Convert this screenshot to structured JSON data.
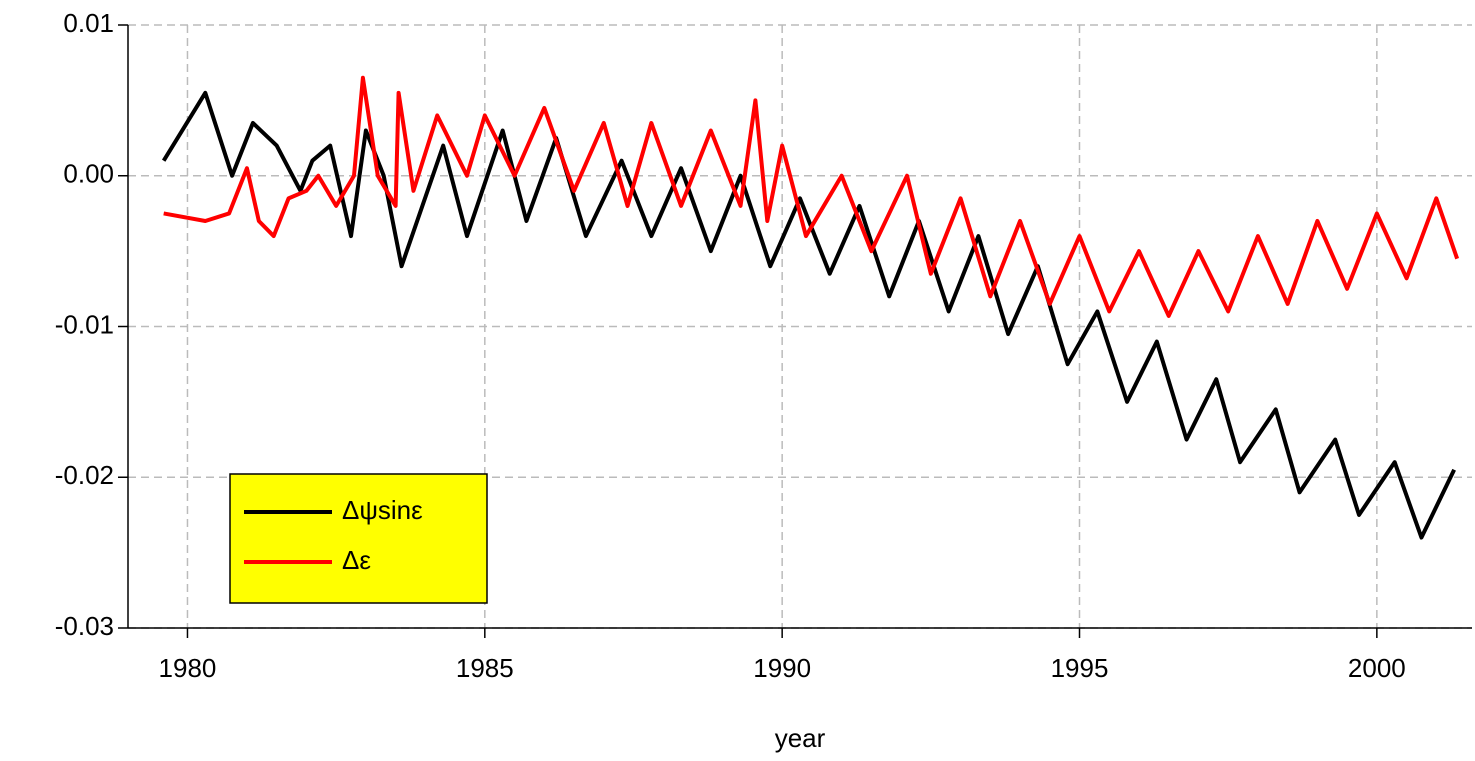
{
  "chart_data": {
    "type": "line",
    "xlabel": "year",
    "xlim": [
      1979,
      2001.6
    ],
    "xticks": [
      1980,
      1985,
      1990,
      1995,
      2000
    ],
    "ylim": [
      -0.03,
      0.01
    ],
    "yticks": [
      -0.03,
      -0.02,
      -0.01,
      {
        "value": 0,
        "label": "0.00"
      },
      0.01
    ],
    "grid": true,
    "legend": "lower left",
    "legend_color": "#ffff00",
    "series": [
      {
        "name": "Δψsinε",
        "color": "#000000",
        "x": [
          1979.6,
          1980.3,
          1980.75,
          1981.1,
          1981.5,
          1981.9,
          1982.1,
          1982.4,
          1982.75,
          1983.0,
          1983.3,
          1983.6,
          1984.3,
          1984.7,
          1985.3,
          1985.7,
          1986.2,
          1986.7,
          1987.3,
          1987.8,
          1988.3,
          1988.8,
          1989.3,
          1989.8,
          1990.3,
          1990.8,
          1991.3,
          1991.8,
          1992.3,
          1992.8,
          1993.3,
          1993.8,
          1994.3,
          1994.8,
          1995.3,
          1995.8,
          1996.3,
          1996.8,
          1997.3,
          1997.7,
          1998.3,
          1998.7,
          1999.3,
          1999.7,
          2000.3,
          2000.75,
          2001.3
        ],
        "values": [
          0.001,
          0.0055,
          0.0,
          0.0035,
          0.002,
          -0.001,
          0.001,
          0.002,
          -0.004,
          0.003,
          0.0,
          -0.006,
          0.002,
          -0.004,
          0.003,
          -0.003,
          0.0025,
          -0.004,
          0.001,
          -0.004,
          0.0005,
          -0.005,
          0.0,
          -0.006,
          -0.0015,
          -0.0065,
          -0.002,
          -0.008,
          -0.003,
          -0.009,
          -0.004,
          -0.0105,
          -0.006,
          -0.0125,
          -0.009,
          -0.015,
          -0.011,
          -0.0175,
          -0.0135,
          -0.019,
          -0.0155,
          -0.021,
          -0.0175,
          -0.0225,
          -0.019,
          -0.024,
          -0.0195
        ]
      },
      {
        "name": "Δε",
        "color": "#ff0000",
        "x": [
          1979.6,
          1980.3,
          1980.7,
          1981.0,
          1981.2,
          1981.45,
          1981.7,
          1982.0,
          1982.2,
          1982.5,
          1982.8,
          1982.95,
          1983.2,
          1983.5,
          1983.55,
          1983.8,
          1984.2,
          1984.7,
          1985.0,
          1985.5,
          1986.0,
          1986.5,
          1987.0,
          1987.4,
          1987.8,
          1988.3,
          1988.8,
          1989.3,
          1989.55,
          1989.75,
          1990.0,
          1990.4,
          1991.0,
          1991.5,
          1992.1,
          1992.5,
          1993.0,
          1993.5,
          1994.0,
          1994.5,
          1995.0,
          1995.5,
          1996.0,
          1996.5,
          1997.0,
          1997.5,
          1998.0,
          1998.5,
          1999.0,
          1999.5,
          2000.0,
          2000.5,
          2001.0,
          2001.35
        ],
        "values": [
          -0.0025,
          -0.003,
          -0.0025,
          0.0005,
          -0.003,
          -0.004,
          -0.0015,
          -0.001,
          0.0,
          -0.002,
          0.0,
          0.0065,
          0.0,
          -0.002,
          0.0055,
          -0.001,
          0.004,
          0.0,
          0.004,
          0.0,
          0.0045,
          -0.001,
          0.0035,
          -0.002,
          0.0035,
          -0.002,
          0.003,
          -0.002,
          0.005,
          -0.003,
          0.002,
          -0.004,
          0.0,
          -0.005,
          0.0,
          -0.0065,
          -0.0015,
          -0.008,
          -0.003,
          -0.0085,
          -0.004,
          -0.009,
          -0.005,
          -0.0093,
          -0.005,
          -0.009,
          -0.004,
          -0.0085,
          -0.003,
          -0.0075,
          -0.0025,
          -0.0068,
          -0.0015,
          -0.0055
        ]
      }
    ]
  }
}
